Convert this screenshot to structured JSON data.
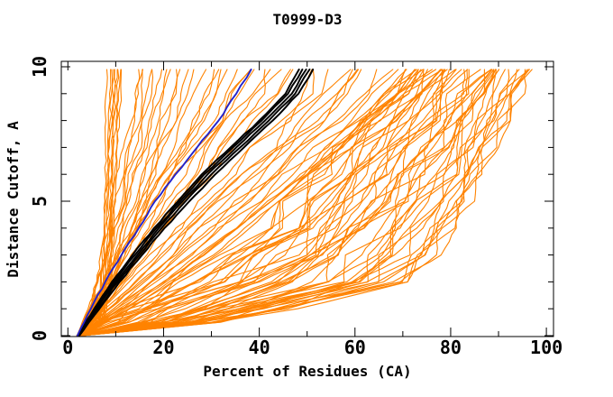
{
  "figure": {
    "background": "#ffffff"
  },
  "chart_data": {
    "type": "line",
    "title": "T0999-D3",
    "xlabel": "Percent of Residues (CA)",
    "ylabel": "Distance Cutoff, A",
    "xlim": [
      0,
      100
    ],
    "ylim": [
      0,
      10
    ],
    "x_major_ticks": [
      0,
      20,
      40,
      60,
      80,
      100
    ],
    "x_minor_ticks": [
      10,
      30,
      50,
      70,
      90
    ],
    "y_major_ticks": [
      0,
      5,
      10
    ],
    "y_minor_ticks": [
      1,
      2,
      3,
      4,
      6,
      7,
      8,
      9
    ],
    "grid": false,
    "legend": "none",
    "frame": "full box, inward ticks on all four sides",
    "curve_top_cutoff": 9.9,
    "anchor_cutoffs": [
      0,
      0.5,
      1,
      2,
      3,
      4,
      5,
      6,
      7,
      8,
      9,
      9.9
    ],
    "colors": {
      "orange": "#ff8300",
      "black": "#000000",
      "blue": "#2323cc",
      "axis": "#000000"
    },
    "highlight_series": [
      {
        "name": "blue-model",
        "color_key": "blue",
        "width": 1.9,
        "percents": [
          2.0,
          3.4,
          4.8,
          7.8,
          11.2,
          14.8,
          18.2,
          22.5,
          27.0,
          31.5,
          35.2,
          38.3
        ]
      },
      {
        "name": "black-model-1",
        "color_key": "black",
        "width": 2.0,
        "percents": [
          2.0,
          3.6,
          5.5,
          9.2,
          13.5,
          18.0,
          23.0,
          28.0,
          34.0,
          40.0,
          45.5,
          48.3
        ]
      },
      {
        "name": "black-model-2",
        "color_key": "black",
        "width": 2.0,
        "percents": [
          2.1,
          3.8,
          5.8,
          9.6,
          14.0,
          18.5,
          23.5,
          28.5,
          34.5,
          40.5,
          46.0,
          49.0
        ]
      },
      {
        "name": "black-model-3",
        "color_key": "black",
        "width": 2.0,
        "percents": [
          2.2,
          4.0,
          6.0,
          10.0,
          14.5,
          19.0,
          24.0,
          29.2,
          35.2,
          41.2,
          46.8,
          49.8
        ]
      },
      {
        "name": "black-model-4",
        "color_key": "black",
        "width": 2.0,
        "percents": [
          2.3,
          4.2,
          6.3,
          10.4,
          15.0,
          19.6,
          24.6,
          30.0,
          36.0,
          42.0,
          47.5,
          50.5
        ]
      },
      {
        "name": "black-model-5",
        "color_key": "black",
        "width": 2.0,
        "percents": [
          2.4,
          4.4,
          6.6,
          10.8,
          15.5,
          20.2,
          25.4,
          30.8,
          36.8,
          42.8,
          48.2,
          51.2
        ]
      }
    ],
    "orange_model_families": [
      {
        "name": "left-vertical-cluster",
        "count": 9,
        "min_percents": [
          1.8,
          5.6,
          6.2,
          6.8,
          7.1,
          7.3,
          7.5,
          7.6,
          7.7,
          7.8,
          7.9,
          8.0
        ],
        "max_percents": [
          2.8,
          7.6,
          8.3,
          9.0,
          9.4,
          9.7,
          10.0,
          10.2,
          10.5,
          10.8,
          11.1,
          11.4
        ]
      },
      {
        "name": "steep-left-group",
        "count": 12,
        "min_percents": [
          1.9,
          3.0,
          4.0,
          5.5,
          6.8,
          8.0,
          9.0,
          10.0,
          11.0,
          12.0,
          12.9,
          13.6
        ],
        "max_percents": [
          2.6,
          4.5,
          6.5,
          9.5,
          12.0,
          14.5,
          16.5,
          18.6,
          20.8,
          22.9,
          25.0,
          26.3
        ]
      },
      {
        "name": "mid-group",
        "count": 14,
        "min_percents": [
          2.0,
          3.5,
          5.0,
          7.6,
          10.0,
          12.5,
          15.0,
          17.8,
          20.6,
          23.5,
          26.2,
          28.0
        ],
        "max_percents": [
          2.6,
          5.0,
          7.5,
          12.0,
          16.5,
          21.0,
          25.5,
          30.2,
          34.8,
          39.6,
          44.2,
          47.0
        ]
      },
      {
        "name": "diagonal-group",
        "count": 16,
        "min_percents": [
          2.2,
          4.5,
          7.0,
          12.0,
          17.0,
          22.0,
          27.2,
          32.6,
          38.0,
          43.5,
          48.2,
          51.0
        ],
        "max_percents": [
          3.0,
          8.0,
          13.0,
          22.0,
          30.5,
          38.0,
          45.2,
          52.2,
          59.5,
          66.5,
          73.5,
          78.0
        ]
      },
      {
        "name": "right-dense-bundle",
        "count": 50,
        "min_percents": [
          2.0,
          6.0,
          11.0,
          22.0,
          31.0,
          38.0,
          44.0,
          50.0,
          55.0,
          60.0,
          66.0,
          70.5
        ],
        "max_percents": [
          3.0,
          32.0,
          48.0,
          71.0,
          78.0,
          82.0,
          85.0,
          87.5,
          90.0,
          92.5,
          95.5,
          97.0
        ]
      }
    ]
  }
}
